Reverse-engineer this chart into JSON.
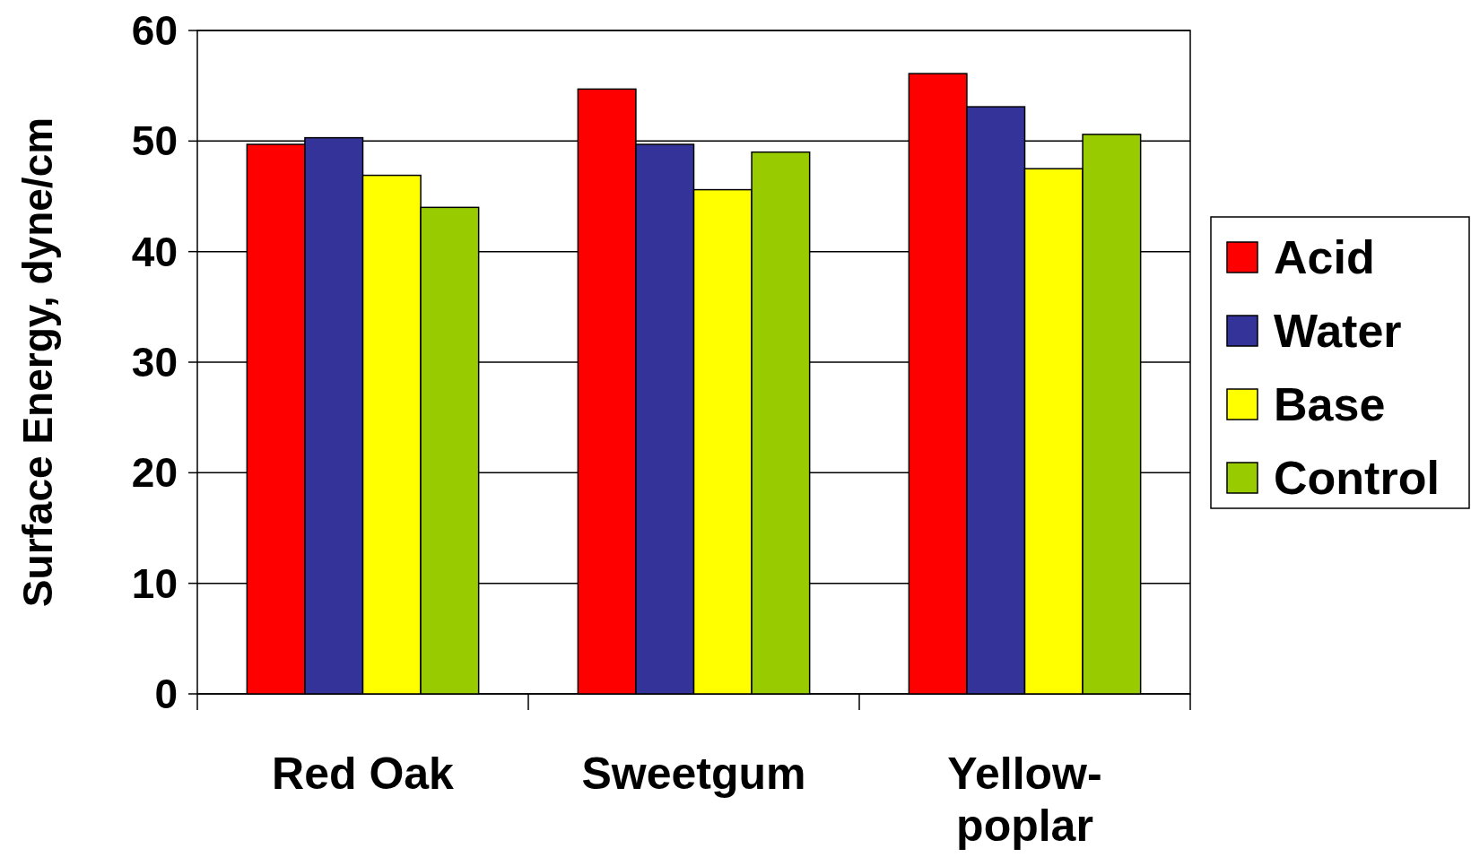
{
  "chart_data": {
    "type": "bar",
    "ylabel": "Surface Energy, dyne/cm",
    "categories": [
      "Red Oak",
      "Sweetgum",
      "Yellow-poplar"
    ],
    "series": [
      {
        "name": "Acid",
        "color": "#ff0000",
        "values": [
          49.7,
          54.7,
          56.1
        ]
      },
      {
        "name": "Water",
        "color": "#333399",
        "values": [
          50.3,
          49.7,
          53.1
        ]
      },
      {
        "name": "Base",
        "color": "#ffff00",
        "values": [
          46.9,
          45.6,
          47.5
        ]
      },
      {
        "name": "Control",
        "color": "#99cc00",
        "values": [
          44.0,
          49.0,
          50.6
        ]
      }
    ],
    "ylim": [
      0,
      60
    ],
    "yticks": [
      0,
      10,
      20,
      30,
      40,
      50,
      60
    ],
    "grid": "y",
    "legend": "right"
  }
}
